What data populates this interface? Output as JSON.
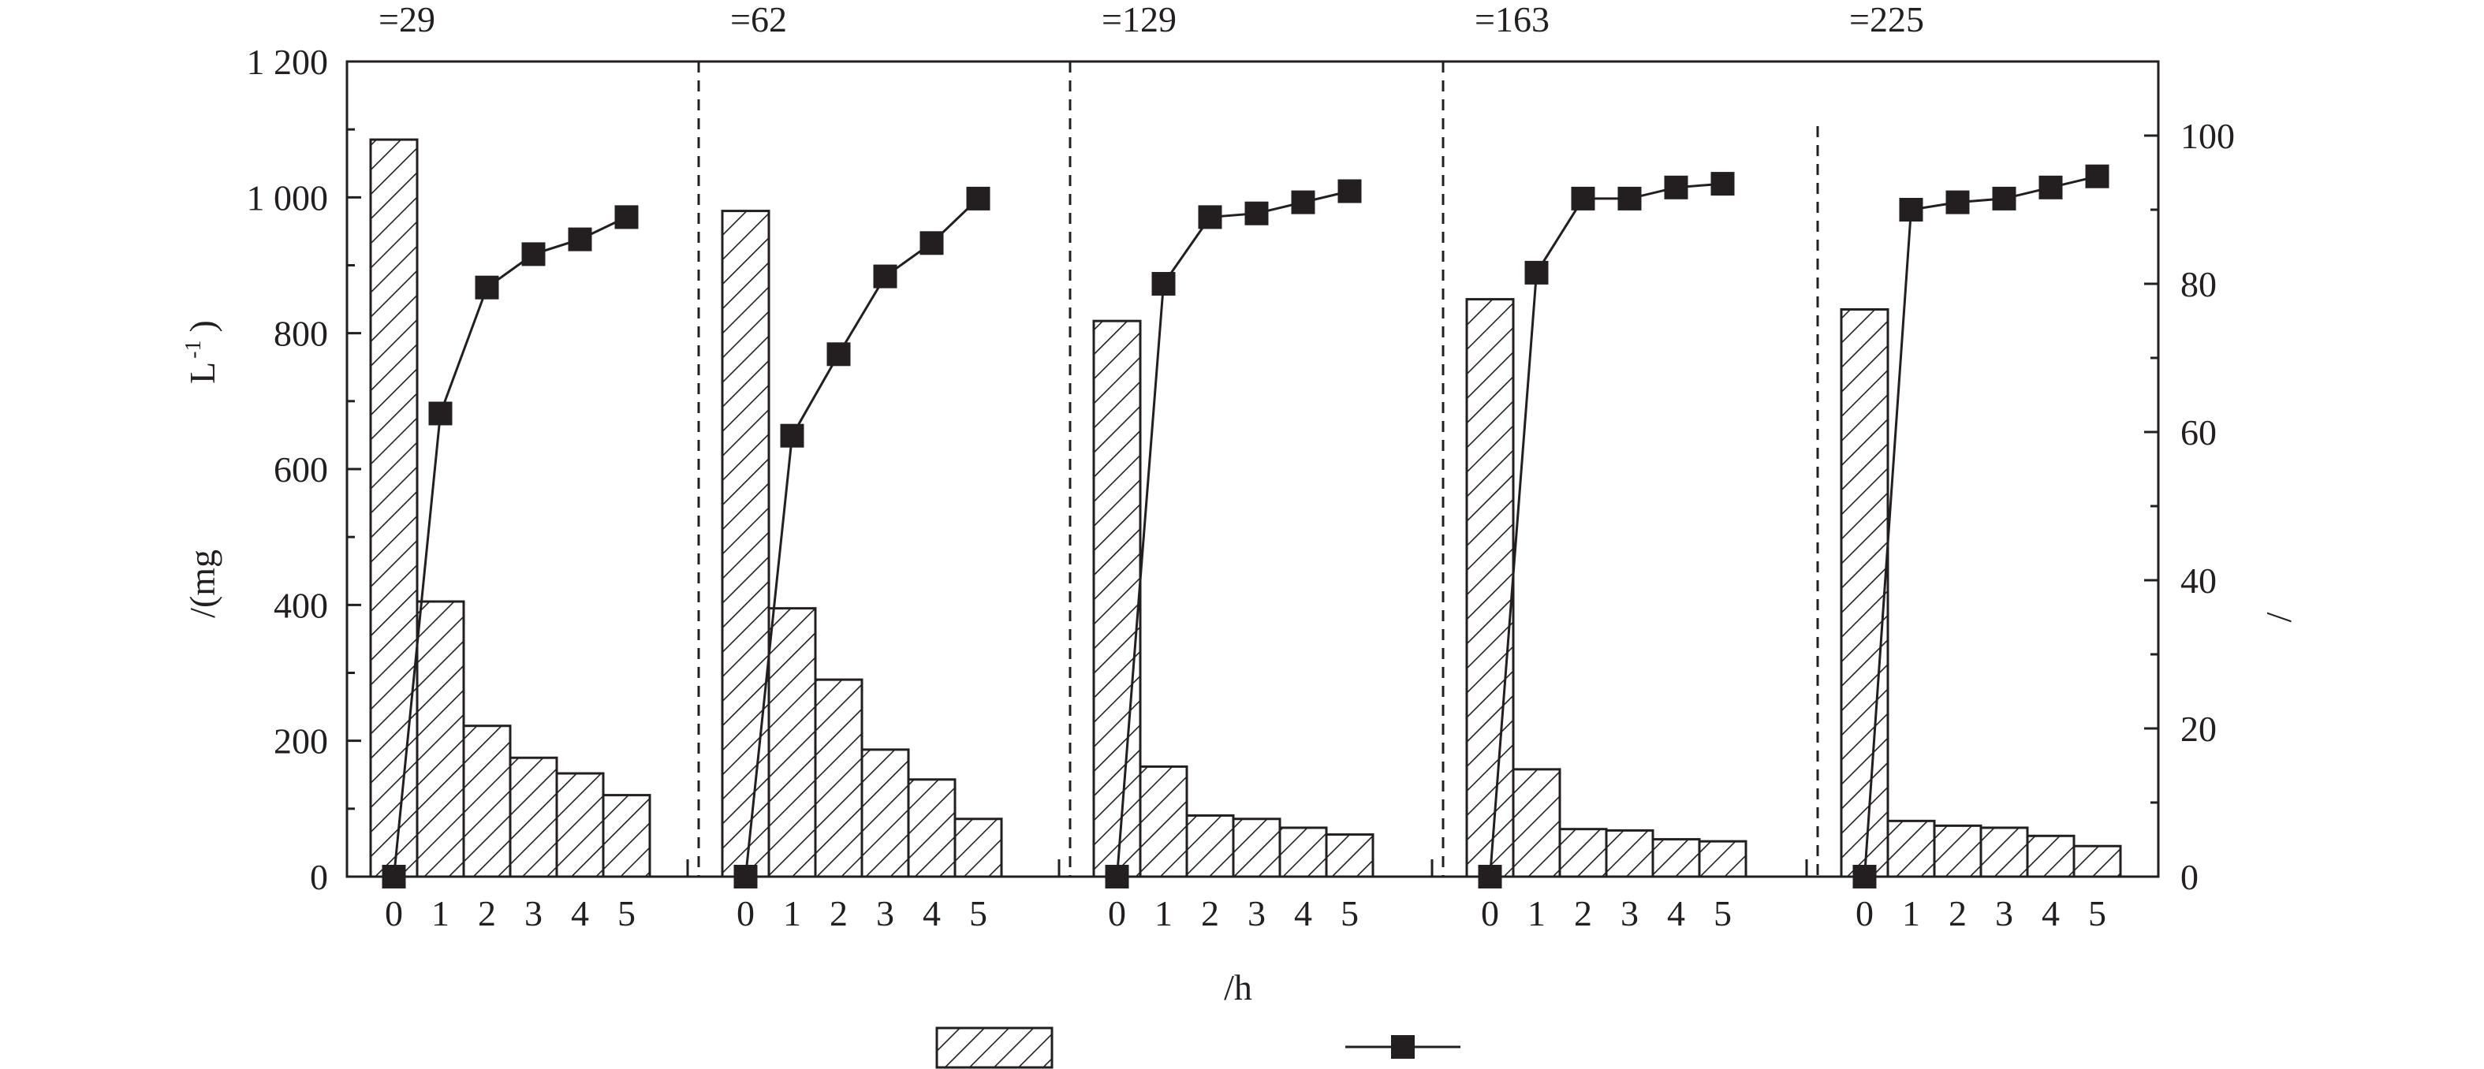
{
  "chart_data": {
    "type": "bar",
    "panels": [
      {
        "label": "=29",
        "categories": [
          "0",
          "1",
          "2",
          "3",
          "4",
          "5"
        ],
        "bars": [
          1085,
          405,
          222,
          175,
          152,
          120
        ],
        "line": [
          0,
          62.5,
          79.5,
          84,
          86,
          89
        ]
      },
      {
        "label": "=62",
        "categories": [
          "0",
          "1",
          "2",
          "3",
          "4",
          "5"
        ],
        "bars": [
          980,
          395,
          290,
          187,
          143,
          85
        ],
        "line": [
          0,
          59.5,
          70.5,
          81,
          85.5,
          91.5
        ]
      },
      {
        "label": "=129",
        "categories": [
          "0",
          "1",
          "2",
          "3",
          "4",
          "5"
        ],
        "bars": [
          818,
          162,
          90,
          85,
          72,
          62
        ],
        "line": [
          0,
          80,
          89,
          89.5,
          91,
          92.5
        ]
      },
      {
        "label": "=163",
        "categories": [
          "0",
          "1",
          "2",
          "3",
          "4",
          "5"
        ],
        "bars": [
          850,
          158,
          70,
          68,
          55,
          52
        ],
        "line": [
          0,
          81.5,
          91.5,
          91.5,
          93,
          93.5
        ]
      },
      {
        "label": "=225",
        "categories": [
          "0",
          "1",
          "2",
          "3",
          "4",
          "5"
        ],
        "bars": [
          835,
          82,
          75,
          72,
          60,
          45
        ],
        "line": [
          0,
          90,
          91,
          91.5,
          93,
          94.5
        ]
      }
    ],
    "y_left": {
      "label_parts": [
        "/(mg",
        "L",
        "-1",
        ")"
      ],
      "ticks": [
        "0",
        "200",
        "400",
        "600",
        "800",
        "1 000",
        "1 200"
      ],
      "tick_values": [
        0,
        200,
        400,
        600,
        800,
        1000,
        1200
      ],
      "range": [
        0,
        1200
      ]
    },
    "y_right": {
      "label": "/",
      "ticks": [
        "0",
        "20",
        "40",
        "60",
        "80",
        "100"
      ],
      "tick_values": [
        0,
        20,
        40,
        60,
        80,
        100
      ],
      "range": [
        0,
        110
      ]
    },
    "xlabel": "/h",
    "legend": {
      "placement": "bottom-center",
      "bar_label": "",
      "line_label": ""
    },
    "grid": false,
    "colors": {
      "ink": "#231f20",
      "fill": "#ffffff"
    }
  }
}
